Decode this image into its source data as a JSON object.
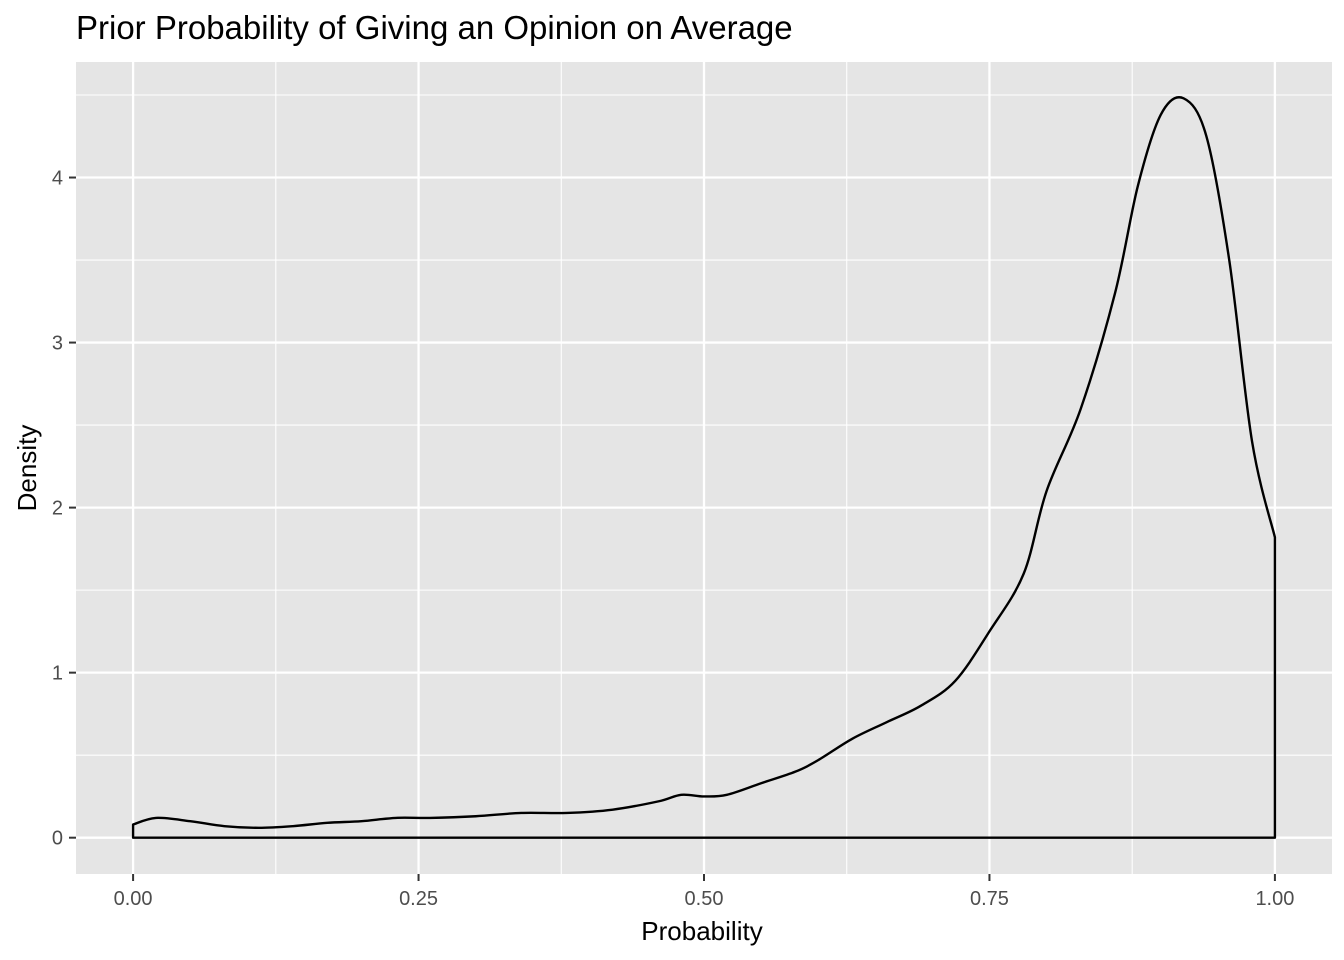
{
  "chart_data": {
    "type": "area",
    "title": "Prior Probability of Giving an Opinion on Average",
    "xlabel": "Probability",
    "ylabel": "Density",
    "xlim": [
      -0.05,
      1.05
    ],
    "ylim": [
      -0.22,
      4.7
    ],
    "x_ticks": [
      0.0,
      0.25,
      0.5,
      0.75,
      1.0
    ],
    "x_tick_labels": [
      "0.00",
      "0.25",
      "0.50",
      "0.75",
      "1.00"
    ],
    "y_ticks": [
      0,
      1,
      2,
      3,
      4
    ],
    "y_tick_labels": [
      "0",
      "1",
      "2",
      "3",
      "4"
    ],
    "grid": true,
    "panel_background": "#e5e5e5",
    "line_color": "#000000",
    "series": [
      {
        "x": [
          0.0,
          0.02,
          0.05,
          0.08,
          0.11,
          0.14,
          0.17,
          0.2,
          0.23,
          0.26,
          0.3,
          0.34,
          0.38,
          0.42,
          0.46,
          0.48,
          0.5,
          0.52,
          0.55,
          0.58,
          0.6,
          0.63,
          0.66,
          0.69,
          0.72,
          0.75,
          0.78,
          0.8,
          0.83,
          0.86,
          0.88,
          0.9,
          0.92,
          0.94,
          0.96,
          0.98,
          1.0
        ],
        "y": [
          0.08,
          0.12,
          0.1,
          0.07,
          0.06,
          0.07,
          0.09,
          0.1,
          0.12,
          0.12,
          0.13,
          0.15,
          0.15,
          0.17,
          0.22,
          0.26,
          0.25,
          0.26,
          0.33,
          0.4,
          0.47,
          0.6,
          0.7,
          0.8,
          0.95,
          1.25,
          1.6,
          2.1,
          2.6,
          3.3,
          3.95,
          4.38,
          4.48,
          4.25,
          3.5,
          2.4,
          1.82
        ]
      }
    ]
  }
}
